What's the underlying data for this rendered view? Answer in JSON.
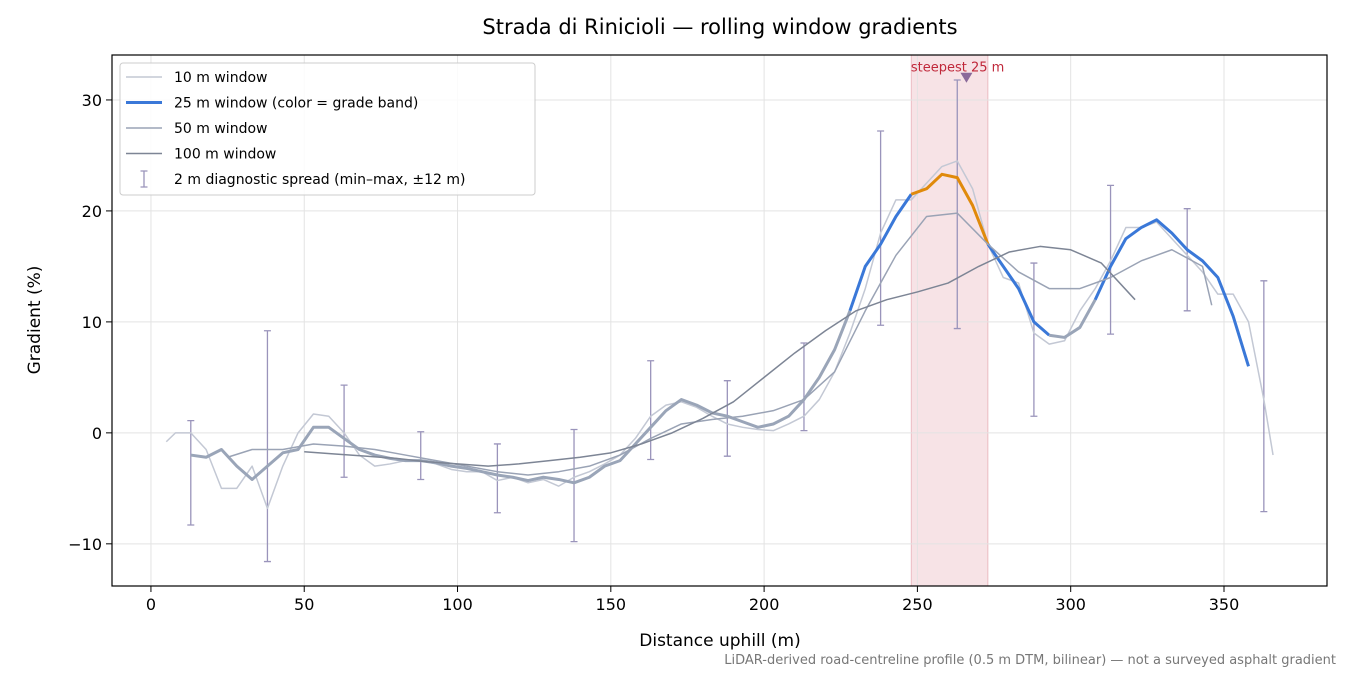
{
  "chart_data": {
    "type": "line",
    "title": "Strada di Rinicioli — rolling window gradients",
    "xlabel": "Distance uphill (m)",
    "ylabel": "Gradient (%)",
    "footnote": "LiDAR-derived road-centreline profile (0.5 m DTM, bilinear) — not a surveyed asphalt gradient",
    "xlim": [
      -12.7,
      383.6
    ],
    "ylim": [
      -13.8,
      34.05
    ],
    "xticks": [
      0,
      50,
      100,
      150,
      200,
      250,
      300,
      350
    ],
    "yticks": [
      {
        "value": -10,
        "label": "−10"
      },
      0,
      10,
      20,
      30
    ],
    "grid": true,
    "legend": "upper left",
    "series": [
      {
        "name": "10 m window",
        "color": "#c3c8d4",
        "width": 1.5,
        "x": [
          5,
          8,
          13,
          18,
          23,
          28,
          33,
          38,
          43,
          48,
          53,
          58,
          63,
          68,
          73,
          78,
          83,
          88,
          93,
          98,
          103,
          108,
          113,
          118,
          123,
          128,
          133,
          138,
          143,
          148,
          153,
          158,
          163,
          168,
          173,
          178,
          183,
          188,
          193,
          198,
          203,
          208,
          213,
          218,
          223,
          228,
          233,
          238,
          243,
          248,
          253,
          258,
          263,
          268,
          273,
          278,
          283,
          288,
          293,
          298,
          303,
          308,
          313,
          318,
          323,
          328,
          333,
          338,
          343,
          348,
          353,
          358,
          363,
          366
        ],
        "values": [
          -0.8,
          0,
          0,
          -1.5,
          -5,
          -5,
          -3,
          -6.8,
          -3,
          0,
          1.7,
          1.5,
          0,
          -2,
          -3,
          -2.8,
          -2.5,
          -2.5,
          -2.8,
          -3.3,
          -3.5,
          -3.5,
          -4.3,
          -4,
          -4.5,
          -4.2,
          -4.8,
          -4,
          -3.5,
          -2.8,
          -2,
          -0.5,
          1.5,
          2.5,
          2.8,
          2.3,
          1.5,
          0.8,
          0.5,
          0.3,
          0.2,
          0.8,
          1.5,
          3,
          5.5,
          9,
          13,
          18,
          21,
          21,
          22.5,
          24,
          24.5,
          22,
          17,
          14,
          13.5,
          9,
          8,
          8.3,
          11,
          13,
          15.5,
          18.5,
          18.5,
          19,
          17.5,
          16,
          14.5,
          12.5,
          12.5,
          10,
          3,
          -2
        ]
      },
      {
        "name": "25 m window (color = grade band)",
        "color": "#3a78d8",
        "width": 3,
        "bands": {
          "thresholds": [
            10,
            20
          ],
          "colors": [
            "#9aa5b8",
            "#3a78d8",
            "#e08a0b"
          ]
        },
        "x": [
          13,
          18,
          23,
          28,
          33,
          38,
          43,
          48,
          53,
          58,
          63,
          68,
          73,
          78,
          83,
          88,
          93,
          98,
          103,
          108,
          113,
          118,
          123,
          128,
          133,
          138,
          143,
          148,
          153,
          158,
          163,
          168,
          173,
          178,
          183,
          188,
          193,
          198,
          203,
          208,
          213,
          218,
          223,
          228,
          233,
          238,
          243,
          248,
          253,
          258,
          263,
          268,
          273,
          278,
          283,
          288,
          293,
          298,
          303,
          308,
          313,
          318,
          323,
          328,
          333,
          338,
          343,
          348,
          353,
          358
        ],
        "values": [
          -2,
          -2.2,
          -1.5,
          -3,
          -4.2,
          -3,
          -1.8,
          -1.5,
          0.5,
          0.5,
          -0.5,
          -1.5,
          -2,
          -2.3,
          -2.5,
          -2.5,
          -2.7,
          -3,
          -3.2,
          -3.5,
          -3.8,
          -4,
          -4.3,
          -4,
          -4.2,
          -4.5,
          -4,
          -3,
          -2.5,
          -1,
          0.5,
          2,
          3,
          2.5,
          1.8,
          1.5,
          1,
          0.5,
          0.8,
          1.5,
          3,
          5,
          7.5,
          11,
          15,
          17,
          19.5,
          21.5,
          22,
          23.3,
          23,
          20.5,
          17,
          15,
          13,
          10,
          8.8,
          8.6,
          9.5,
          12,
          15,
          17.5,
          18.5,
          19.2,
          18,
          16.5,
          15.5,
          14,
          10.5,
          6
        ]
      },
      {
        "name": "50 m window",
        "color": "#9aa3b5",
        "width": 1.5,
        "x": [
          25,
          33,
          43,
          53,
          63,
          73,
          83,
          93,
          103,
          113,
          123,
          133,
          143,
          153,
          163,
          173,
          183,
          193,
          203,
          213,
          223,
          233,
          243,
          253,
          263,
          273,
          283,
          293,
          303,
          313,
          323,
          333,
          343,
          346
        ],
        "values": [
          -2.2,
          -1.5,
          -1.5,
          -1,
          -1.2,
          -1.5,
          -2,
          -2.5,
          -3,
          -3.5,
          -3.8,
          -3.5,
          -3,
          -2,
          -0.5,
          0.8,
          1.2,
          1.5,
          2,
          3,
          5.5,
          11,
          16,
          19.5,
          19.8,
          17,
          14.5,
          13,
          13,
          14,
          15.5,
          16.5,
          15,
          11.5
        ]
      },
      {
        "name": "100 m window",
        "color": "#7d8595",
        "width": 1.5,
        "x": [
          50,
          60,
          70,
          80,
          90,
          100,
          110,
          120,
          130,
          140,
          150,
          160,
          170,
          180,
          190,
          200,
          210,
          220,
          230,
          240,
          250,
          260,
          270,
          280,
          290,
          300,
          310,
          321
        ],
        "values": [
          -1.7,
          -1.9,
          -2.1,
          -2.3,
          -2.6,
          -2.8,
          -3,
          -2.8,
          -2.5,
          -2.2,
          -1.8,
          -1,
          0,
          1.3,
          2.8,
          5,
          7.2,
          9.2,
          11,
          12,
          12.7,
          13.5,
          15,
          16.3,
          16.8,
          16.5,
          15.3,
          12
        ]
      }
    ],
    "errorbars": {
      "name": "2 m diagnostic spread (min–max, ±12 m)",
      "color": "#9a94bb",
      "x": [
        13,
        38,
        63,
        88,
        113,
        138,
        163,
        188,
        213,
        238,
        263,
        288,
        313,
        338,
        363
      ],
      "low": [
        -8.3,
        -11.6,
        -4,
        -4.2,
        -7.2,
        -9.8,
        -2.4,
        -2.1,
        0.2,
        9.7,
        9.4,
        1.5,
        8.9,
        11,
        -7.1
      ],
      "high": [
        1.1,
        9.2,
        4.3,
        0.1,
        -1,
        0.3,
        6.5,
        4.7,
        8.1,
        27.2,
        31.8,
        15.3,
        22.3,
        20.2,
        13.7
      ]
    },
    "steepest": {
      "label": "steepest 25 m",
      "start": 248,
      "end": 273,
      "marker_x": 266,
      "marker_y": 32,
      "color": "#c0283a"
    }
  }
}
